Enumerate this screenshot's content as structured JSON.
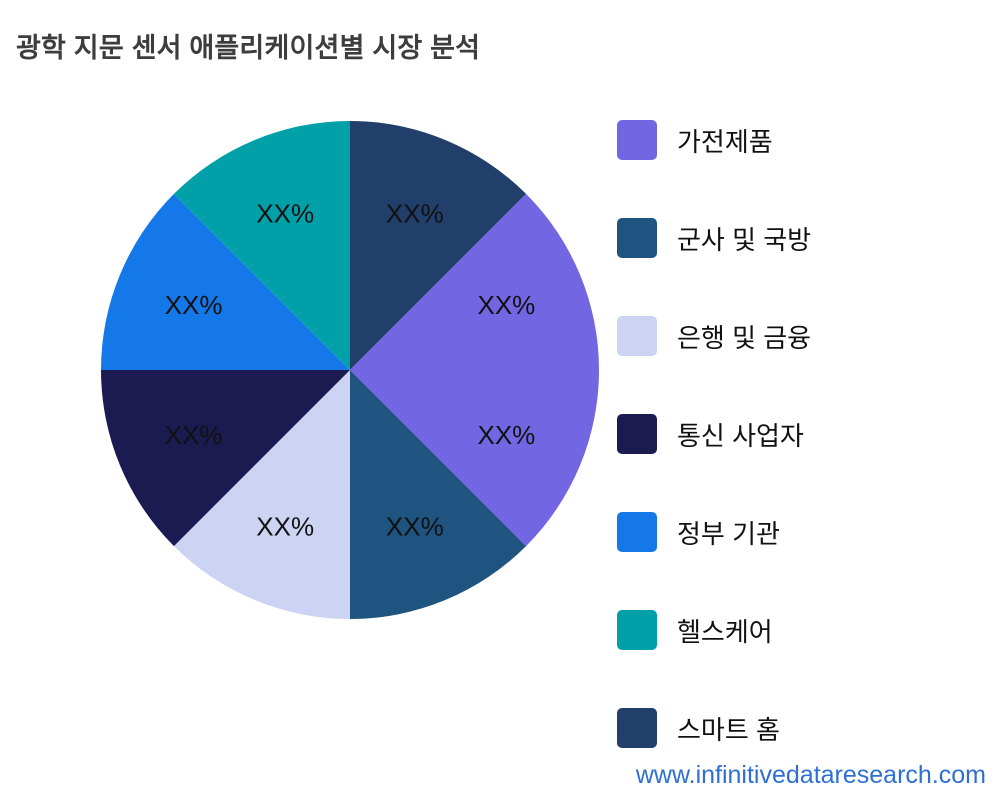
{
  "title": "광학 지문 센서 애플리케이션별 시장 분석",
  "footer": {
    "website": "www.infinitivedataresearch.com",
    "link_color": "#2e6fd6"
  },
  "chart_data": {
    "type": "pie",
    "title": "광학 지문 센서 애플리케이션별 시장 분석",
    "legend_position": "right",
    "direction": "clockwise",
    "start_angle_deg": 0,
    "value_placeholder": "XX%",
    "slices": [
      {
        "legend": "스마트 홈",
        "display": "XX%",
        "fraction": 12.5,
        "color": "#223e6b"
      },
      {
        "legend": "가전제품",
        "display": "XX%",
        "fraction": 12.5,
        "color": "#7366e3"
      },
      {
        "legend": "가전제품",
        "display": "XX%",
        "fraction": 12.5,
        "color": "#7366e3"
      },
      {
        "legend": "군사 및 국방",
        "display": "XX%",
        "fraction": 12.5,
        "color": "#1f5380"
      },
      {
        "legend": "은행 및 금융",
        "display": "XX%",
        "fraction": 12.5,
        "color": "#cdd3f2"
      },
      {
        "legend": "통신 사업자",
        "display": "XX%",
        "fraction": 12.5,
        "color": "#1b1b52"
      },
      {
        "legend": "정부 기관",
        "display": "XX%",
        "fraction": 12.5,
        "color": "#1478e8"
      },
      {
        "legend": "헬스케어",
        "display": "XX%",
        "fraction": 12.5,
        "color": "#00a0a8"
      }
    ],
    "legend": [
      {
        "label": "가전제품",
        "color": "#7366e3"
      },
      {
        "label": "군사 및 국방",
        "color": "#1f5380"
      },
      {
        "label": "은행 및 금융",
        "color": "#cdd3f2"
      },
      {
        "label": "통신 사업자",
        "color": "#1b1b52"
      },
      {
        "label": "정부 기관",
        "color": "#1478e8"
      },
      {
        "label": "헬스케어",
        "color": "#00a0a8"
      },
      {
        "label": "스마트 홈",
        "color": "#223e6b"
      }
    ]
  }
}
